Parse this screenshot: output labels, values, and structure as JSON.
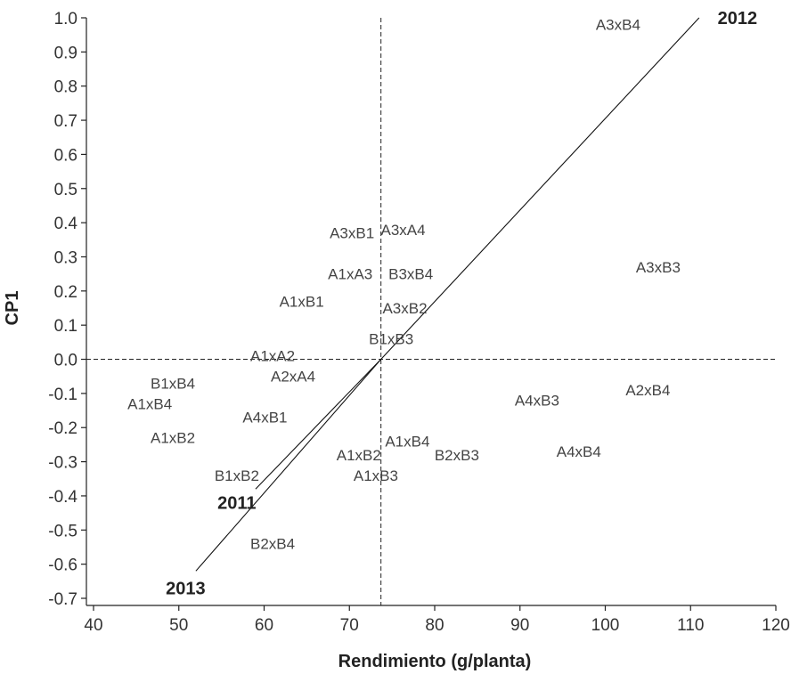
{
  "chart_data": {
    "type": "scatter",
    "xlabel": "Rendimiento (g/planta)",
    "ylabel": "CP1",
    "xlim": [
      40,
      120
    ],
    "ylim": [
      -0.7,
      1.0
    ],
    "xticks": [
      40,
      50,
      60,
      70,
      80,
      90,
      100,
      110,
      120
    ],
    "yticks": [
      1.0,
      0.9,
      0.8,
      0.7,
      0.6,
      0.5,
      0.4,
      0.3,
      0.2,
      0.1,
      0.0,
      -0.1,
      -0.2,
      -0.3,
      -0.4,
      -0.5,
      -0.6,
      -0.7
    ],
    "ytick_labels": [
      "1.0",
      "0.9",
      "0.8",
      "0.7",
      "0.6",
      "0.5",
      "0.4",
      "0.3",
      "0.2",
      "0.1",
      "0.0",
      "-0.1",
      "-0.2",
      "-0.3",
      "-0.4",
      "-0.5",
      "-0.6",
      "-0.7"
    ],
    "reference_lines": {
      "x": 73.7,
      "y": 0.0
    },
    "points": [
      {
        "label": "A3xB4",
        "x": 101.5,
        "y": 0.98
      },
      {
        "label": "A3xB1",
        "x": 70.3,
        "y": 0.37
      },
      {
        "label": "A3xA4",
        "x": 76.3,
        "y": 0.38
      },
      {
        "label": "A1xA3",
        "x": 70.1,
        "y": 0.25
      },
      {
        "label": "B3xB4",
        "x": 77.2,
        "y": 0.25
      },
      {
        "label": "A3xB3",
        "x": 106.2,
        "y": 0.27
      },
      {
        "label": "A1xB1",
        "x": 64.4,
        "y": 0.17
      },
      {
        "label": "A3xB2",
        "x": 76.5,
        "y": 0.15
      },
      {
        "label": "B1xB3",
        "x": 74.9,
        "y": 0.06
      },
      {
        "label": "A1xA2",
        "x": 61.0,
        "y": 0.01
      },
      {
        "label": "A2xA4",
        "x": 63.4,
        "y": -0.05
      },
      {
        "label": "B1xB4",
        "x": 49.3,
        "y": -0.07
      },
      {
        "label": "A1xB4",
        "x": 46.6,
        "y": -0.13
      },
      {
        "label": "A4xB3",
        "x": 92.0,
        "y": -0.12
      },
      {
        "label": "A2xB4",
        "x": 105.0,
        "y": -0.09
      },
      {
        "label": "A4xB1",
        "x": 60.1,
        "y": -0.17
      },
      {
        "label": "A1xB2",
        "x": 49.3,
        "y": -0.23
      },
      {
        "label": "A1xB4",
        "x": 76.8,
        "y": -0.24
      },
      {
        "label": "A1xB2",
        "x": 71.1,
        "y": -0.28
      },
      {
        "label": "B2xB3",
        "x": 82.6,
        "y": -0.28
      },
      {
        "label": "A4xB4",
        "x": 96.9,
        "y": -0.27
      },
      {
        "label": "B1xB2",
        "x": 56.8,
        "y": -0.34
      },
      {
        "label": "A1xB3",
        "x": 73.1,
        "y": -0.34
      },
      {
        "label": "B2xB4",
        "x": 61.0,
        "y": -0.54
      }
    ],
    "year_lines": [
      {
        "label": "2012",
        "from": {
          "x": 73.7,
          "y": 0.0
        },
        "to": {
          "x": 111.0,
          "y": 1.0
        }
      },
      {
        "label": "2011",
        "from": {
          "x": 73.7,
          "y": 0.0
        },
        "to": {
          "x": 59.0,
          "y": -0.38
        }
      },
      {
        "label": "2013",
        "from": {
          "x": 73.7,
          "y": 0.0
        },
        "to": {
          "x": 52.0,
          "y": -0.62
        }
      }
    ],
    "year_labels": [
      {
        "label": "2012",
        "x": 115.5,
        "y": 1.0
      },
      {
        "label": "2011",
        "x": 56.8,
        "y": -0.42
      },
      {
        "label": "2013",
        "x": 50.8,
        "y": -0.67
      }
    ]
  }
}
